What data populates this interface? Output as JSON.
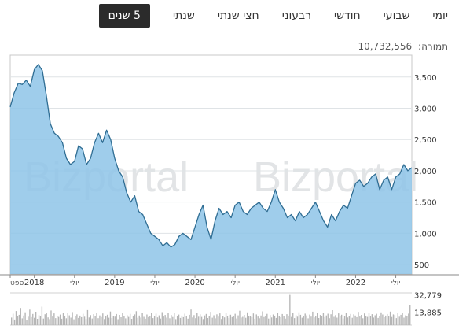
{
  "tabs": [
    {
      "label": "יומי"
    },
    {
      "label": "שבועי"
    },
    {
      "label": "חודשי"
    },
    {
      "label": "רבעוני"
    },
    {
      "label": "חצי שנתי"
    },
    {
      "label": "שנתי"
    },
    {
      "label": "5 שנים"
    }
  ],
  "active_tab": 6,
  "turnover": {
    "label": "תמורה:",
    "value": "10,732,556"
  },
  "watermarks": [
    "Bizportal",
    "Bizportal"
  ],
  "chart_data": [
    {
      "type": "area",
      "y_ticks": [
        500,
        1000,
        1500,
        2000,
        2500,
        3000,
        3500
      ],
      "y_tick_labels": [
        "500",
        "1,000",
        "1,500",
        "2,000",
        "2,500",
        "3,000",
        "3,500"
      ],
      "ylim": [
        350,
        3850
      ],
      "x_ticks": [
        {
          "label": "ספט",
          "t": 0
        },
        {
          "label": "2018",
          "t": 0.3
        },
        {
          "label": "יולי",
          "t": 0.8
        },
        {
          "label": "2019",
          "t": 1.3
        },
        {
          "label": "יולי",
          "t": 1.8
        },
        {
          "label": "2020",
          "t": 2.3
        },
        {
          "label": "יולי",
          "t": 2.8
        },
        {
          "label": "2021",
          "t": 3.3
        },
        {
          "label": "יולי",
          "t": 3.8
        },
        {
          "label": "2022",
          "t": 4.3
        },
        {
          "label": "יולי",
          "t": 4.8
        }
      ],
      "x": [
        0,
        0.05,
        0.1,
        0.15,
        0.2,
        0.25,
        0.3,
        0.35,
        0.4,
        0.45,
        0.5,
        0.55,
        0.6,
        0.65,
        0.7,
        0.75,
        0.8,
        0.85,
        0.9,
        0.95,
        1.0,
        1.05,
        1.1,
        1.15,
        1.2,
        1.25,
        1.3,
        1.35,
        1.4,
        1.45,
        1.5,
        1.55,
        1.6,
        1.65,
        1.7,
        1.75,
        1.8,
        1.85,
        1.9,
        1.95,
        2.0,
        2.05,
        2.1,
        2.15,
        2.2,
        2.25,
        2.3,
        2.35,
        2.4,
        2.45,
        2.5,
        2.55,
        2.6,
        2.65,
        2.7,
        2.75,
        2.8,
        2.85,
        2.9,
        2.95,
        3.0,
        3.05,
        3.1,
        3.15,
        3.2,
        3.25,
        3.3,
        3.35,
        3.4,
        3.45,
        3.5,
        3.55,
        3.6,
        3.65,
        3.7,
        3.75,
        3.8,
        3.85,
        3.9,
        3.95,
        4.0,
        4.05,
        4.1,
        4.15,
        4.2,
        4.25,
        4.3,
        4.35,
        4.4,
        4.45,
        4.5,
        4.55,
        4.6,
        4.65,
        4.7,
        4.75,
        4.8,
        4.85,
        4.9,
        4.95,
        5.0
      ],
      "values": [
        3020,
        3250,
        3400,
        3380,
        3450,
        3350,
        3620,
        3700,
        3600,
        3200,
        2750,
        2600,
        2550,
        2450,
        2200,
        2100,
        2150,
        2400,
        2350,
        2100,
        2200,
        2450,
        2600,
        2450,
        2650,
        2500,
        2200,
        2000,
        1900,
        1650,
        1500,
        1600,
        1350,
        1300,
        1150,
        1000,
        950,
        900,
        800,
        850,
        780,
        820,
        950,
        1000,
        950,
        900,
        1100,
        1300,
        1450,
        1100,
        900,
        1200,
        1400,
        1300,
        1350,
        1250,
        1450,
        1500,
        1350,
        1300,
        1400,
        1450,
        1500,
        1400,
        1350,
        1500,
        1700,
        1500,
        1400,
        1250,
        1300,
        1200,
        1350,
        1250,
        1300,
        1400,
        1500,
        1350,
        1200,
        1100,
        1300,
        1200,
        1350,
        1450,
        1400,
        1600,
        1800,
        1850,
        1750,
        1800,
        1900,
        1950,
        1700,
        1850,
        1900,
        1700,
        1900,
        1950,
        2100,
        2000,
        2050
      ],
      "fill_color": "#8ec4e8",
      "line_color": "#2f6d93"
    },
    {
      "type": "bar",
      "title": "",
      "y_tick_labels": [
        "32,779",
        "13,885"
      ],
      "y_ticks": [
        32779,
        13885
      ],
      "ylim": [
        0,
        35000
      ],
      "values": [
        8200,
        12400,
        6100,
        15300,
        9800,
        11200,
        18600,
        7300,
        10400,
        13900,
        5600,
        9100,
        16800,
        8700,
        12100,
        7900,
        14500,
        6800,
        10900,
        9500,
        20100,
        7100,
        11800,
        13300,
        8400,
        6500,
        15900,
        9300,
        12700,
        7600,
        10200,
        8900,
        11400,
        6900,
        13600,
        9700,
        7400,
        12900,
        10600,
        8100,
        14200,
        6300,
        9900,
        11700,
        7800,
        10300,
        8600,
        12300,
        9100,
        6700,
        16300,
        8300,
        10800,
        7200,
        11900,
        9600,
        13100,
        7500,
        10500,
        8800,
        12600,
        6600,
        9400,
        11300,
        8000,
        14800,
        7700,
        10100,
        9200,
        12000,
        6400,
        11100,
        8500,
        13400,
        9800,
        7300,
        10700,
        8900,
        12200,
        6800,
        9500,
        11600,
        15100,
        7900,
        10400,
        8200,
        12800,
        9000,
        6900,
        11500,
        8700,
        10000,
        13700,
        7600,
        9700,
        12500,
        8400,
        10600,
        7100,
        14100,
        9300,
        11000,
        8100,
        12900,
        7400,
        10900,
        8800,
        13200,
        6500,
        9600,
        11400,
        7800,
        10300,
        8600,
        12400,
        9900,
        7000,
        11200,
        16900,
        8300,
        10800,
        7500,
        13000,
        9100,
        11800,
        8900,
        6600,
        10500,
        12100,
        7700,
        9400,
        14400,
        8000,
        10700,
        7300,
        11700,
        9200,
        12700,
        6700,
        9800,
        8400,
        13500,
        10200,
        7600,
        11300,
        8700,
        9500,
        12300,
        7200,
        10600,
        15600,
        8200,
        9000,
        11100,
        7900,
        13800,
        9600,
        10100,
        8500,
        12600,
        6900,
        11600,
        9300,
        7400,
        10400,
        14900,
        8800,
        9900,
        12200,
        7100,
        10900,
        8300,
        11500,
        9700,
        7800,
        13300,
        10000,
        8600,
        12000,
        9400,
        7000,
        11900,
        10300,
        32779,
        8900,
        12800,
        7600,
        10700,
        9100,
        13900,
        11200,
        8000,
        9800,
        12500,
        10600,
        7300,
        11400,
        9200,
        14600,
        8400,
        10200,
        12900,
        7700,
        11000,
        9500,
        13100,
        8700,
        10500,
        12400,
        7500,
        11800,
        16200,
        9000,
        10800,
        8100,
        12700,
        9700,
        11300,
        7200,
        10100,
        13600,
        8300,
        9900,
        12100,
        7900,
        11700,
        10400,
        8600,
        14300,
        9300,
        11100,
        7400,
        12600,
        10000,
        8900,
        13400,
        9600,
        11900,
        8200,
        10700,
        12300,
        7800,
        9400,
        13800,
        11500,
        8500,
        10300,
        12000,
        9800,
        14700,
        8800,
        11600,
        10900,
        7600,
        12800,
        9100,
        11200,
        13000,
        8100,
        10600,
        9700,
        12500,
        22000
      ]
    }
  ]
}
